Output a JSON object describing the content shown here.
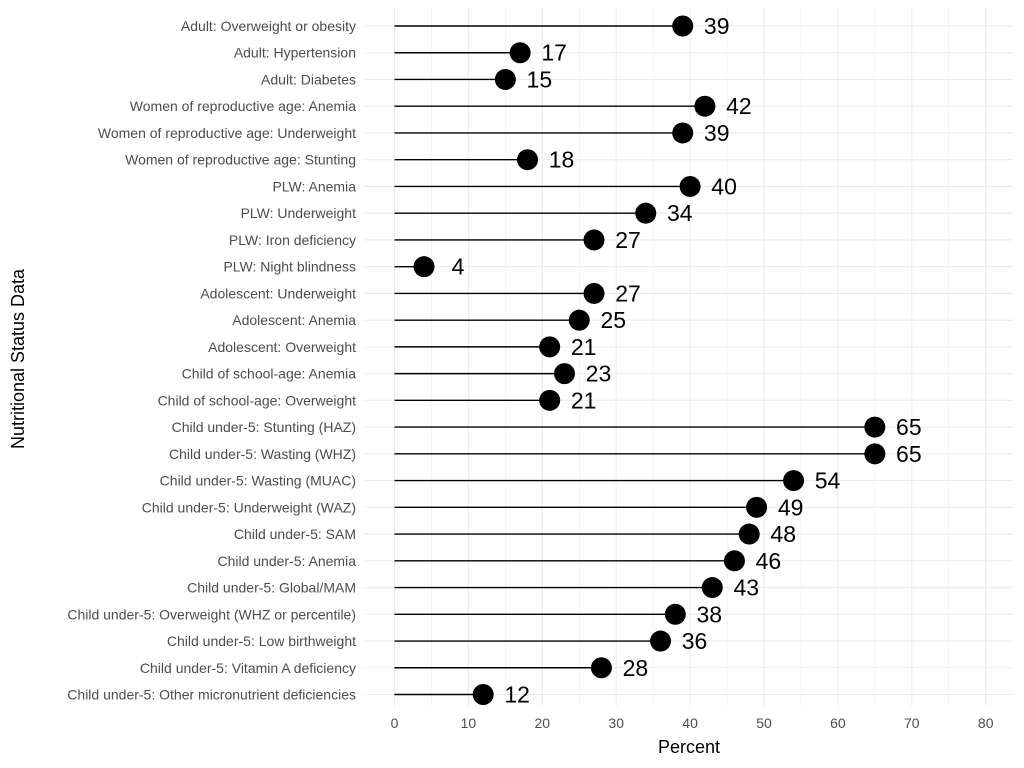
{
  "chart_data": {
    "type": "lollipop",
    "orientation": "horizontal",
    "xlabel": "Percent",
    "ylabel": "Nutritional Status Data",
    "xlim": [
      0,
      82
    ],
    "xticks": [
      0,
      10,
      20,
      30,
      40,
      50,
      60,
      70,
      80
    ],
    "grid": true,
    "legend": "none",
    "colors": {
      "mark": "#000000",
      "grid": "#ebebeb",
      "label": "#4d4d4d"
    },
    "categories": [
      "Adult: Overweight or obesity",
      "Adult: Hypertension",
      "Adult: Diabetes",
      "Women of reproductive age: Anemia",
      "Women of reproductive age: Underweight",
      "Women of reproductive age: Stunting",
      "PLW: Anemia",
      "PLW: Underweight",
      "PLW: Iron deficiency",
      "PLW: Night blindness",
      "Adolescent: Underweight",
      "Adolescent: Anemia",
      "Adolescent: Overweight",
      "Child of school-age: Anemia",
      "Child of school-age: Overweight",
      "Child under-5: Stunting (HAZ)",
      "Child under-5: Wasting (WHZ)",
      "Child under-5: Wasting (MUAC)",
      "Child under-5: Underweight (WAZ)",
      "Child under-5: SAM",
      "Child under-5: Anemia",
      "Child under-5: Global/MAM",
      "Child under-5: Overweight (WHZ or percentile)",
      "Child under-5: Low birthweight",
      "Child under-5: Vitamin A deficiency",
      "Child under-5: Other micronutrient deficiencies"
    ],
    "values": [
      39,
      17,
      15,
      42,
      39,
      18,
      40,
      34,
      27,
      4,
      27,
      25,
      21,
      23,
      21,
      65,
      65,
      54,
      49,
      48,
      46,
      43,
      38,
      36,
      28,
      12
    ]
  }
}
